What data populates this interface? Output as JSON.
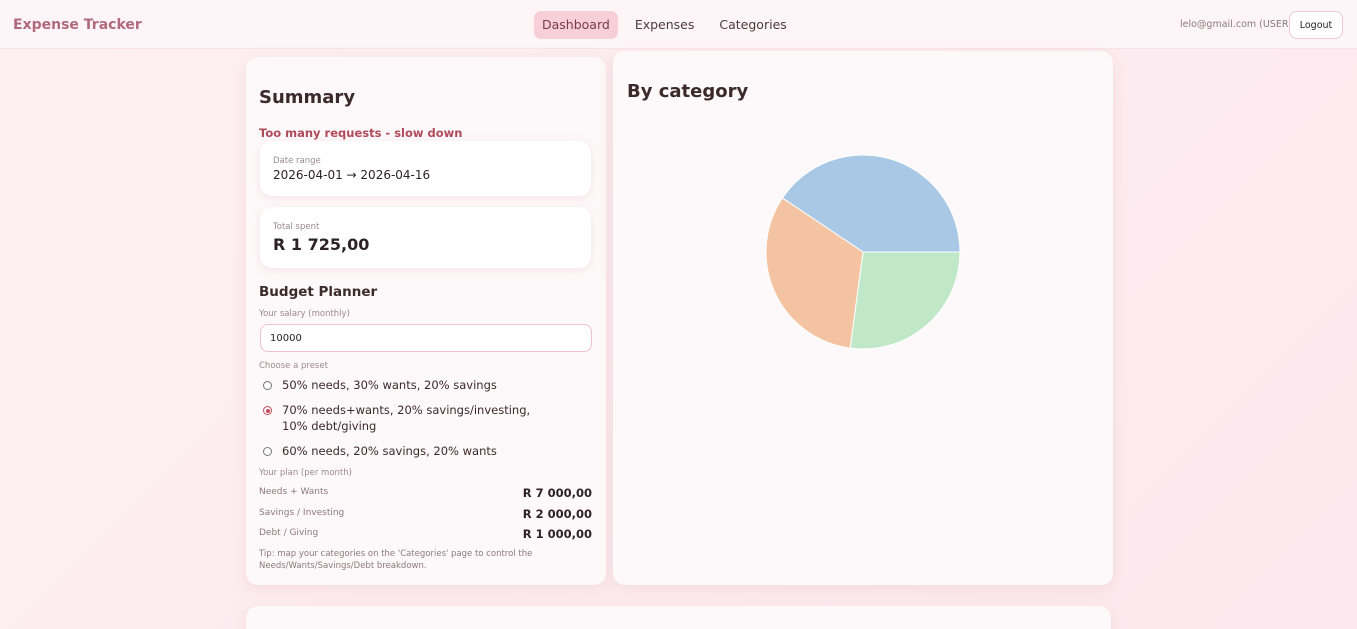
{
  "header": {
    "brand": "Expense Tracker",
    "nav": [
      "Dashboard",
      "Expenses",
      "Categories"
    ],
    "active_nav": "Dashboard",
    "user": "lelo@gmail.com (USER)",
    "logout": "Logout"
  },
  "summary": {
    "title": "Summary",
    "error": "Too many requests - slow down",
    "date_range_label": "Date range",
    "date_range_value": "2026-04-01 → 2026-04-16",
    "total_label": "Total spent",
    "total_value": "R 1 725,00"
  },
  "budget": {
    "title": "Budget Planner",
    "salary_label": "Your salary (monthly)",
    "salary_value": "10000",
    "preset_label": "Choose a preset",
    "presets": [
      {
        "label": "50% needs, 30% wants, 20% savings",
        "checked": false
      },
      {
        "label": "70% needs+wants, 20% savings/investing, 10% debt/giving",
        "checked": true
      },
      {
        "label": "60% needs, 20% savings, 20% wants",
        "checked": false
      }
    ],
    "plan_label": "Your plan (per month)",
    "plan": [
      {
        "label": "Needs + Wants",
        "value": "R 7 000,00"
      },
      {
        "label": "Savings / Investing",
        "value": "R 2 000,00"
      },
      {
        "label": "Debt / Giving",
        "value": "R 1 000,00"
      }
    ],
    "tip": "Tip: map your categories on the 'Categories' page to control the Needs/Wants/Savings/Debt breakdown."
  },
  "chart_title": "By category",
  "chart_data": {
    "type": "pie",
    "slices": [
      {
        "value": 40.6,
        "color": "#a8c8e6"
      },
      {
        "value": 32.3,
        "color": "#f4c4a2"
      },
      {
        "value": 27.1,
        "color": "#c0e8c8"
      }
    ]
  }
}
